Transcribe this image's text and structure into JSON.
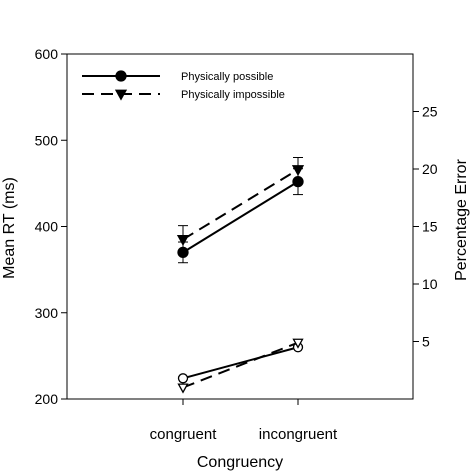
{
  "chart_data": {
    "type": "line",
    "title": "",
    "xlabel": "Congruency",
    "ylabel": "Mean RT (ms)",
    "y2label": "Percentage Error",
    "categories": [
      "congruent",
      "incongruent"
    ],
    "ylim": [
      200,
      600
    ],
    "yticks": [
      "200",
      "300",
      "400",
      "500",
      "600"
    ],
    "y2lim": [
      0,
      30
    ],
    "y2ticks": [
      "5",
      "10",
      "15",
      "20",
      "25"
    ],
    "legend_position": "top-left",
    "grid": false,
    "series": [
      {
        "name": "Physically possible",
        "axis": "left",
        "line": "solid",
        "marker": "circle-filled",
        "values": [
          370,
          452
        ],
        "errors": [
          12,
          15
        ]
      },
      {
        "name": "Physically impossible",
        "axis": "left",
        "line": "dashed",
        "marker": "triangle-down-filled",
        "values": [
          385,
          466
        ],
        "errors": [
          16,
          14
        ]
      },
      {
        "name": "",
        "axis": "right",
        "line": "solid",
        "marker": "circle-open",
        "values": [
          1.8,
          4.5
        ]
      },
      {
        "name": "",
        "axis": "right",
        "line": "dashed",
        "marker": "triangle-down-open",
        "values": [
          1.0,
          4.9
        ]
      }
    ]
  }
}
